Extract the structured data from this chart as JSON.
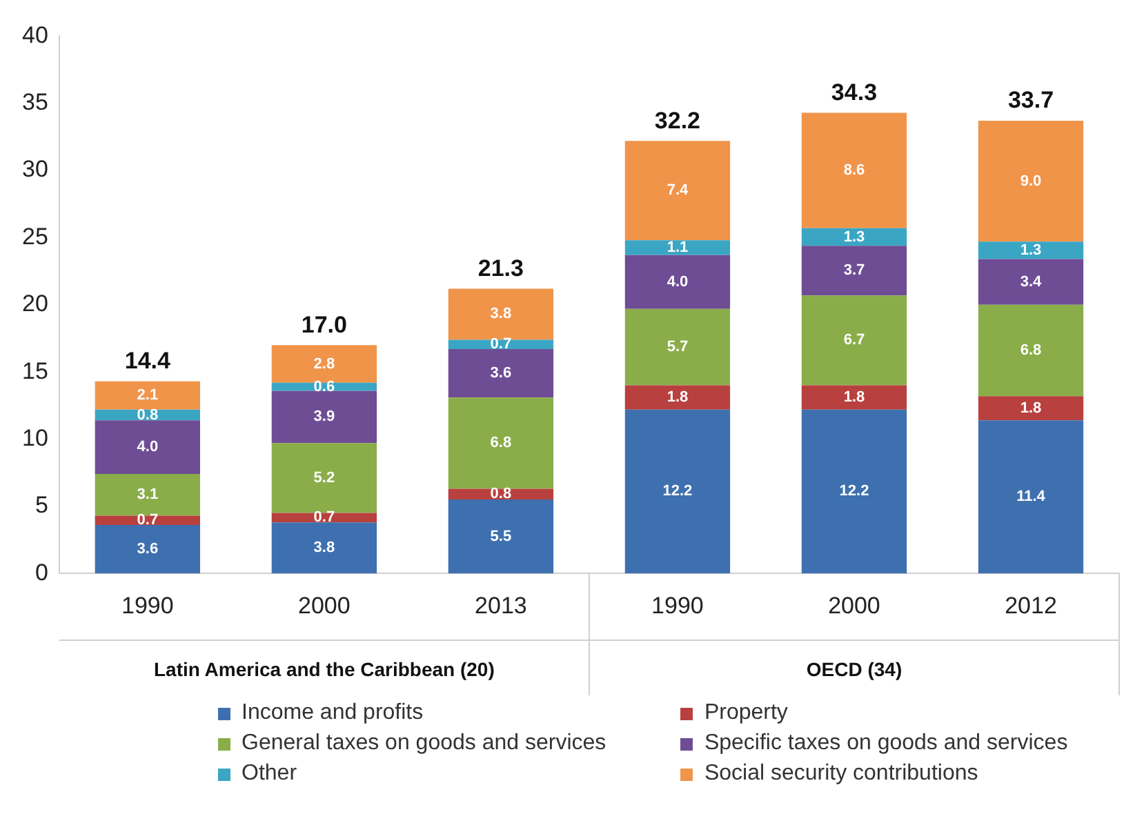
{
  "chart_data": {
    "type": "bar",
    "stacked": true,
    "categories": [
      "1990",
      "2000",
      "2013",
      "1990",
      "2000",
      "2012"
    ],
    "series": [
      {
        "name": "Income and profits",
        "color": "#3e70b0",
        "values": [
          3.6,
          3.8,
          5.5,
          12.2,
          12.2,
          11.4
        ],
        "value_labels": [
          "3.6",
          "3.8",
          "5.5",
          "12.2",
          "12.2",
          "11.4"
        ]
      },
      {
        "name": "Property",
        "color": "#b8403e",
        "values": [
          0.7,
          0.7,
          0.8,
          1.8,
          1.8,
          1.8
        ],
        "value_labels": [
          "0.7",
          "0.7",
          "0.8",
          "1.8",
          "1.8",
          "1.8"
        ]
      },
      {
        "name": "General taxes on goods and services",
        "color": "#8aad4a",
        "values": [
          3.1,
          5.2,
          6.8,
          5.7,
          6.7,
          6.8
        ],
        "value_labels": [
          "3.1",
          "5.2",
          "6.8",
          "5.7",
          "6.7",
          "6.8"
        ]
      },
      {
        "name": "Specific taxes on goods and services",
        "color": "#6e4d95",
        "values": [
          4.0,
          3.9,
          3.6,
          4.0,
          3.7,
          3.4
        ],
        "value_labels": [
          "4.0",
          "3.9",
          "3.6",
          "4.0",
          "3.7",
          "3.4"
        ]
      },
      {
        "name": "Other",
        "color": "#3aa6c4",
        "values": [
          0.8,
          0.6,
          0.7,
          1.1,
          1.3,
          1.3
        ],
        "value_labels": [
          "0.8",
          "0.6",
          "0.7",
          "1.1",
          "1.3",
          "1.3"
        ]
      },
      {
        "name": "Social security contributions",
        "color": "#f0944a",
        "values": [
          2.1,
          2.8,
          3.8,
          7.4,
          8.6,
          9.0
        ],
        "value_labels": [
          "2.1",
          "2.8",
          "3.8",
          "7.4",
          "8.6",
          "9.0"
        ]
      }
    ],
    "totals": [
      "14.4",
      "17.0",
      "21.3",
      "32.2",
      "34.3",
      "33.7"
    ],
    "annotations": [
      "Latin America and the Caribbean (20)",
      "OECD (34)"
    ],
    "ylim": [
      0,
      40
    ],
    "yticks": [
      0,
      5,
      10,
      15,
      20,
      25,
      30,
      35,
      40
    ],
    "grid": false,
    "legend": "bottom"
  }
}
